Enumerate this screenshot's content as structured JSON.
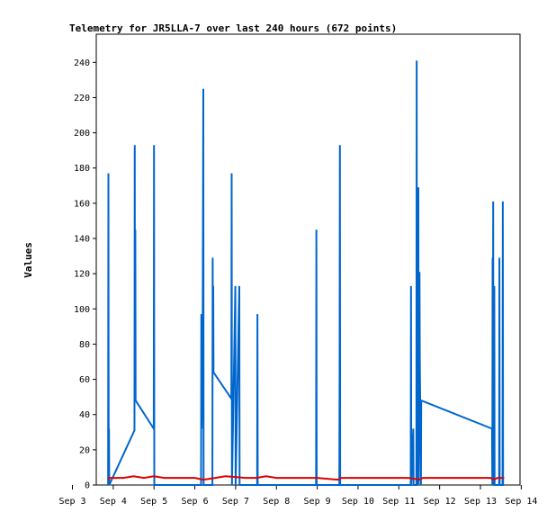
{
  "chart_data": {
    "type": "line",
    "title": "Telemetry for JR5LLA-7 over last 240 hours (672 points)",
    "xlabel": "",
    "ylabel": "Values",
    "x_ticks": [
      "Sep 3",
      "Sep 4",
      "Sep 5",
      "Sep 6",
      "Sep 7",
      "Sep 8",
      "Sep 9",
      "Sep 10",
      "Sep 11",
      "Sep 12",
      "Sep 13",
      "Sep 14"
    ],
    "xlim": [
      "Sep 3 00:00",
      "Sep 14 00:00"
    ],
    "y_ticks": [
      0,
      20,
      40,
      60,
      80,
      100,
      120,
      140,
      160,
      180,
      200,
      220,
      240
    ],
    "ylim": [
      0,
      256
    ],
    "grid": false,
    "legend": "none",
    "series": [
      {
        "color": "#0066cc",
        "points": [
          [
            "Sep 3 21:00",
            0
          ],
          [
            "Sep 3 21:10",
            177
          ],
          [
            "Sep 3 21:20",
            0
          ],
          [
            "Sep 3 21:30",
            32
          ],
          [
            "Sep 3 21:40",
            0
          ],
          [
            "Sep 4 12:30",
            31
          ],
          [
            "Sep 4 12:40",
            193
          ],
          [
            "Sep 4 12:50",
            48
          ],
          [
            "Sep 4 13:00",
            145
          ],
          [
            "Sep 4 13:10",
            48
          ],
          [
            "Sep 4 23:50",
            32
          ],
          [
            "Sep 5 00:00",
            193
          ],
          [
            "Sep 5 00:10",
            0
          ],
          [
            "Sep 6 03:40",
            0
          ],
          [
            "Sep 6 03:50",
            97
          ],
          [
            "Sep 6 04:00",
            32
          ],
          [
            "Sep 6 04:10",
            48
          ],
          [
            "Sep 6 04:20",
            87
          ],
          [
            "Sep 6 04:30",
            48
          ],
          [
            "Sep 6 05:00",
            225
          ],
          [
            "Sep 6 05:10",
            0
          ],
          [
            "Sep 6 10:20",
            0
          ],
          [
            "Sep 6 10:30",
            129
          ],
          [
            "Sep 6 10:40",
            64
          ],
          [
            "Sep 6 10:50",
            113
          ],
          [
            "Sep 6 11:00",
            64
          ],
          [
            "Sep 6 21:30",
            49
          ],
          [
            "Sep 6 21:40",
            177
          ],
          [
            "Sep 6 21:50",
            0
          ],
          [
            "Sep 6 23:50",
            113
          ],
          [
            "Sep 7 00:00",
            0
          ],
          [
            "Sep 7 02:10",
            113
          ],
          [
            "Sep 7 02:20",
            0
          ],
          [
            "Sep 7 12:40",
            0
          ],
          [
            "Sep 7 12:50",
            97
          ],
          [
            "Sep 7 13:00",
            0
          ],
          [
            "Sep 8 23:20",
            0
          ],
          [
            "Sep 8 23:30",
            145
          ],
          [
            "Sep 8 23:40",
            0
          ],
          [
            "Sep 9 13:00",
            0
          ],
          [
            "Sep 9 13:10",
            64
          ],
          [
            "Sep 9 13:20",
            193
          ],
          [
            "Sep 9 13:30",
            0
          ],
          [
            "Sep 11 07:00",
            0
          ],
          [
            "Sep 11 07:10",
            113
          ],
          [
            "Sep 11 07:20",
            0
          ],
          [
            "Sep 11 08:30",
            32
          ],
          [
            "Sep 11 08:40",
            0
          ],
          [
            "Sep 11 10:20",
            0
          ],
          [
            "Sep 11 10:30",
            241
          ],
          [
            "Sep 11 10:40",
            0
          ],
          [
            "Sep 11 11:30",
            169
          ],
          [
            "Sep 11 11:40",
            0
          ],
          [
            "Sep 11 12:10",
            121
          ],
          [
            "Sep 11 12:20",
            72
          ],
          [
            "Sep 11 13:00",
            0
          ],
          [
            "Sep 11 13:10",
            48
          ],
          [
            "Sep 13 06:50",
            32
          ],
          [
            "Sep 13 07:00",
            0
          ],
          [
            "Sep 13 07:10",
            129
          ],
          [
            "Sep 13 07:20",
            0
          ],
          [
            "Sep 13 07:30",
            161
          ],
          [
            "Sep 13 07:40",
            0
          ],
          [
            "Sep 13 08:10",
            113
          ],
          [
            "Sep 13 08:20",
            0
          ],
          [
            "Sep 13 11:00",
            0
          ],
          [
            "Sep 13 11:10",
            129
          ],
          [
            "Sep 13 11:20",
            0
          ],
          [
            "Sep 13 13:00",
            0
          ],
          [
            "Sep 13 13:10",
            161
          ],
          [
            "Sep 13 13:20",
            0
          ]
        ]
      },
      {
        "color": "#dd0000",
        "points": [
          [
            "Sep 3 21:00",
            3
          ],
          [
            "Sep 3 22:00",
            4
          ],
          [
            "Sep 4 06:00",
            4
          ],
          [
            "Sep 4 12:00",
            5
          ],
          [
            "Sep 4 18:00",
            4
          ],
          [
            "Sep 5 00:00",
            5
          ],
          [
            "Sep 5 06:00",
            4
          ],
          [
            "Sep 6 00:00",
            4
          ],
          [
            "Sep 6 05:00",
            3
          ],
          [
            "Sep 6 12:00",
            4
          ],
          [
            "Sep 6 18:00",
            5
          ],
          [
            "Sep 7 06:00",
            4
          ],
          [
            "Sep 7 12:00",
            4
          ],
          [
            "Sep 7 18:00",
            5
          ],
          [
            "Sep 8 00:00",
            4
          ],
          [
            "Sep 9 00:00",
            4
          ],
          [
            "Sep 9 12:00",
            3
          ],
          [
            "Sep 9 14:00",
            4
          ],
          [
            "Sep 11 06:00",
            4
          ],
          [
            "Sep 11 12:00",
            3
          ],
          [
            "Sep 11 14:00",
            4
          ],
          [
            "Sep 13 06:00",
            4
          ],
          [
            "Sep 13 08:00",
            3
          ],
          [
            "Sep 13 10:00",
            4
          ],
          [
            "Sep 13 14:00",
            4
          ]
        ]
      }
    ]
  }
}
